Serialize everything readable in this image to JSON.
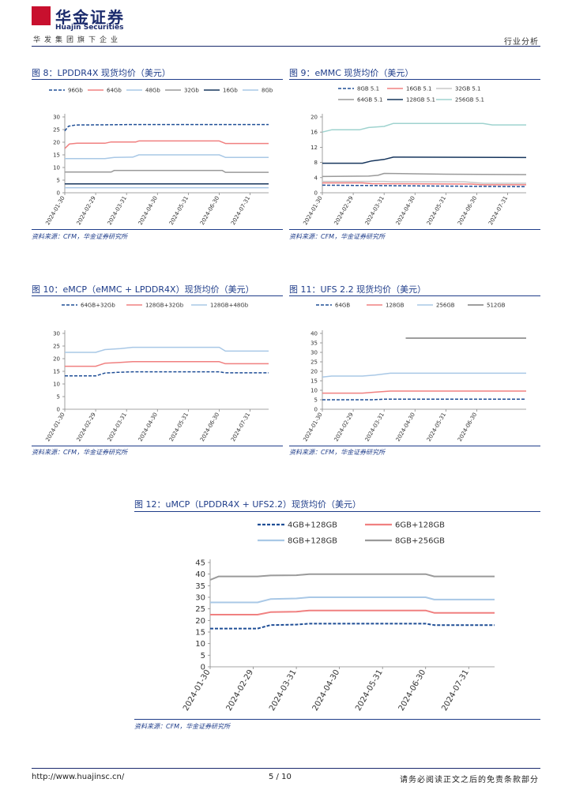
{
  "header": {
    "logo_cn": "华金证券",
    "logo_en": "Huajin Securities",
    "logo_sub": "华发集团旗下企业",
    "section": "行业分析"
  },
  "footer": {
    "url": "http://www.huajinsc.cn/",
    "page": "5 / 10",
    "disclaimer": "请务必阅读正文之后的免责条款部分"
  },
  "colors": {
    "dark_blue": "#1f4e96",
    "red": "#f08080",
    "light_blue": "#a9c8e6",
    "gray": "#9a9a9a",
    "dark_gray": "#7f7f7f",
    "navy": "#17365d",
    "teal": "#9fd3cf"
  },
  "chart_data": [
    {
      "type": "line",
      "id": "fig8",
      "title": "图 8：LPDDR4X 现货均价（美元）",
      "source": "资料来源：CFM，华金证券研究所",
      "ylim": [
        0,
        30
      ],
      "yticks": [
        0,
        5,
        10,
        15,
        20,
        25,
        30
      ],
      "xticks": [
        "2024-01-30",
        "2024-02-29",
        "2024-03-31",
        "2024-04-30",
        "2024-05-31",
        "2024-06-30",
        "2024-07-31"
      ],
      "x_end": 6.6,
      "series": [
        {
          "name": "96Gb",
          "color": "#1f4e96",
          "dash": true,
          "points": [
            [
              0,
              24.5
            ],
            [
              0.12,
              26.3
            ],
            [
              0.35,
              26.8
            ],
            [
              1.5,
              26.9
            ],
            [
              2.2,
              27.0
            ],
            [
              6.6,
              27.0
            ]
          ]
        },
        {
          "name": "64Gb",
          "color": "#f08080",
          "dash": false,
          "points": [
            [
              0,
              17.5
            ],
            [
              0.15,
              19.3
            ],
            [
              0.4,
              19.6
            ],
            [
              1.3,
              19.6
            ],
            [
              1.5,
              20.1
            ],
            [
              2.3,
              20.1
            ],
            [
              2.4,
              20.5
            ],
            [
              5.0,
              20.5
            ],
            [
              5.2,
              19.5
            ],
            [
              6.6,
              19.5
            ]
          ]
        },
        {
          "name": "48Gb",
          "color": "#a9c8e6",
          "dash": false,
          "points": [
            [
              0,
              13.5
            ],
            [
              1.3,
              13.5
            ],
            [
              1.6,
              14.0
            ],
            [
              2.2,
              14.1
            ],
            [
              2.4,
              15.0
            ],
            [
              5.0,
              15.0
            ],
            [
              5.2,
              14.0
            ],
            [
              6.6,
              14.0
            ]
          ]
        },
        {
          "name": "32Gb",
          "color": "#9a9a9a",
          "dash": false,
          "points": [
            [
              0,
              8.2
            ],
            [
              1.5,
              8.2
            ],
            [
              1.6,
              8.8
            ],
            [
              5.1,
              8.8
            ],
            [
              5.2,
              8.1
            ],
            [
              6.6,
              8.1
            ]
          ]
        },
        {
          "name": "16Gb",
          "color": "#17365d",
          "dash": false,
          "points": [
            [
              0,
              3.5
            ],
            [
              6.6,
              3.5
            ]
          ]
        },
        {
          "name": "8Gb",
          "color": "#a9c8e6",
          "dash": false,
          "points": [
            [
              0,
              2.0
            ],
            [
              6.6,
              2.0
            ]
          ]
        }
      ]
    },
    {
      "type": "line",
      "id": "fig9",
      "title": "图 9：eMMC 现货均价（美元）",
      "source": "资料来源：CFM，华金证券研究所",
      "ylim": [
        0,
        20
      ],
      "yticks": [
        0,
        4,
        8,
        12,
        16,
        20
      ],
      "xticks": [
        "2024-01-30",
        "2024-02-29",
        "2024-03-31",
        "2024-04-30",
        "2024-05-31",
        "2024-06-30",
        "2024-07-31"
      ],
      "x_end": 6.6,
      "series": [
        {
          "name": "8GB 5.1",
          "color": "#1f4e96",
          "dash": true,
          "points": [
            [
              0,
              2.0
            ],
            [
              6.6,
              1.6
            ]
          ]
        },
        {
          "name": "16GB 5.1",
          "color": "#f08080",
          "dash": false,
          "points": [
            [
              0,
              2.6
            ],
            [
              1.3,
              2.6
            ],
            [
              1.6,
              2.4
            ],
            [
              4.8,
              2.3
            ],
            [
              5.2,
              2.1
            ],
            [
              6.6,
              2.1
            ]
          ]
        },
        {
          "name": "32GB 5.1",
          "color": "#c8c8c8",
          "dash": false,
          "points": [
            [
              0,
              3.0
            ],
            [
              2.0,
              3.0
            ],
            [
              2.3,
              2.9
            ],
            [
              4.6,
              2.9
            ],
            [
              5.2,
              2.5
            ],
            [
              6.6,
              2.5
            ]
          ]
        },
        {
          "name": "64GB 5.1",
          "color": "#9a9a9a",
          "dash": false,
          "points": [
            [
              0,
              4.3
            ],
            [
              1.5,
              4.4
            ],
            [
              1.8,
              4.6
            ],
            [
              2.0,
              5.1
            ],
            [
              3.0,
              5.0
            ],
            [
              4.0,
              4.9
            ],
            [
              6.6,
              4.8
            ]
          ]
        },
        {
          "name": "128GB 5.1",
          "color": "#17365d",
          "dash": false,
          "points": [
            [
              0,
              7.8
            ],
            [
              1.3,
              7.8
            ],
            [
              1.6,
              8.4
            ],
            [
              2.0,
              8.8
            ],
            [
              2.3,
              9.4
            ],
            [
              6.6,
              9.3
            ]
          ]
        },
        {
          "name": "256GB 5.1",
          "color": "#9fd3cf",
          "dash": false,
          "points": [
            [
              0,
              16.0
            ],
            [
              0.3,
              16.6
            ],
            [
              1.2,
              16.6
            ],
            [
              1.5,
              17.2
            ],
            [
              2.0,
              17.5
            ],
            [
              2.3,
              18.3
            ],
            [
              5.2,
              18.3
            ],
            [
              5.5,
              17.9
            ],
            [
              6.6,
              17.9
            ]
          ]
        }
      ]
    },
    {
      "type": "line",
      "id": "fig10",
      "title": "图 10：eMCP（eMMC + LPDDR4X）现货均价（美元）",
      "source": "资料来源：CFM，华金证券研究所",
      "ylim": [
        0,
        30
      ],
      "yticks": [
        0,
        5,
        10,
        15,
        20,
        25,
        30
      ],
      "xticks": [
        "2024-01-30",
        "2024-02-29",
        "2024-03-31",
        "2024-04-30",
        "2024-05-31",
        "2024-06-30",
        "2024-07-31"
      ],
      "x_end": 6.6,
      "series": [
        {
          "name": "64GB+32Gb",
          "color": "#1f4e96",
          "dash": true,
          "points": [
            [
              0,
              13.2
            ],
            [
              1.0,
              13.2
            ],
            [
              1.3,
              14.3
            ],
            [
              1.7,
              14.6
            ],
            [
              2.2,
              14.8
            ],
            [
              5.0,
              14.8
            ],
            [
              5.2,
              14.4
            ],
            [
              6.6,
              14.4
            ]
          ]
        },
        {
          "name": "128GB+32Gb",
          "color": "#f08080",
          "dash": false,
          "points": [
            [
              0,
              17.0
            ],
            [
              1.0,
              17.0
            ],
            [
              1.3,
              18.2
            ],
            [
              1.8,
              18.5
            ],
            [
              2.2,
              18.8
            ],
            [
              5.0,
              18.8
            ],
            [
              5.2,
              18.0
            ],
            [
              6.6,
              18.0
            ]
          ]
        },
        {
          "name": "128GB+48Gb",
          "color": "#a9c8e6",
          "dash": false,
          "points": [
            [
              0,
              22.5
            ],
            [
              1.0,
              22.5
            ],
            [
              1.3,
              23.6
            ],
            [
              1.8,
              24.0
            ],
            [
              2.2,
              24.5
            ],
            [
              5.0,
              24.5
            ],
            [
              5.2,
              23.0
            ],
            [
              6.6,
              23.0
            ]
          ]
        }
      ]
    },
    {
      "type": "line",
      "id": "fig11",
      "title": "图 11：UFS 2.2 现货均价（美元）",
      "source": "资料来源：CFM，华金证券研究所",
      "ylim": [
        0,
        40
      ],
      "yticks": [
        0,
        5,
        10,
        15,
        20,
        25,
        30,
        35,
        40
      ],
      "xticks": [
        "2024-01-30",
        "2024-02-29",
        "2024-03-31",
        "2024-04-30",
        "2024-05-31",
        "2024-06-30"
      ],
      "x_end": 6.6,
      "series": [
        {
          "name": "64GB",
          "color": "#1f4e96",
          "dash": true,
          "points": [
            [
              0,
              5.0
            ],
            [
              1.6,
              5.0
            ],
            [
              2.0,
              5.3
            ],
            [
              6.6,
              5.3
            ]
          ]
        },
        {
          "name": "128GB",
          "color": "#f08080",
          "dash": false,
          "points": [
            [
              0,
              8.5
            ],
            [
              1.3,
              8.5
            ],
            [
              1.7,
              9.0
            ],
            [
              2.2,
              9.6
            ],
            [
              6.6,
              9.6
            ]
          ]
        },
        {
          "name": "256GB",
          "color": "#a9c8e6",
          "dash": false,
          "points": [
            [
              0,
              17.0
            ],
            [
              0.3,
              17.5
            ],
            [
              1.3,
              17.5
            ],
            [
              1.7,
              18.0
            ],
            [
              2.2,
              19.0
            ],
            [
              6.6,
              19.0
            ]
          ]
        },
        {
          "name": "512GB",
          "color": "#7f7f7f",
          "dash": false,
          "points": [
            [
              2.7,
              37.5
            ],
            [
              6.6,
              37.5
            ]
          ]
        }
      ]
    },
    {
      "type": "line",
      "id": "fig12",
      "title": "图 12：uMCP（LPDDR4X + UFS2.2）现货均价（美元）",
      "source": "资料来源：CFM，华金证券研究所",
      "ylim": [
        0,
        45
      ],
      "yticks": [
        0,
        5,
        10,
        15,
        20,
        25,
        30,
        35,
        40,
        45
      ],
      "xticks": [
        "2024-01-30",
        "2024-02-29",
        "2024-03-31",
        "2024-04-30",
        "2024-05-31",
        "2024-06-30",
        "2024-07-31"
      ],
      "x_end": 6.6,
      "series": [
        {
          "name": "4GB+128GB",
          "color": "#1f4e96",
          "dash": true,
          "points": [
            [
              0,
              16.5
            ],
            [
              1.1,
              16.5
            ],
            [
              1.4,
              18.0
            ],
            [
              2.0,
              18.2
            ],
            [
              2.3,
              18.6
            ],
            [
              5.0,
              18.6
            ],
            [
              5.2,
              18.0
            ],
            [
              6.6,
              18.0
            ]
          ]
        },
        {
          "name": "6GB+128GB",
          "color": "#f08080",
          "dash": false,
          "points": [
            [
              0,
              22.5
            ],
            [
              1.1,
              22.5
            ],
            [
              1.4,
              23.6
            ],
            [
              2.0,
              23.8
            ],
            [
              2.3,
              24.3
            ],
            [
              5.0,
              24.3
            ],
            [
              5.2,
              23.3
            ],
            [
              6.6,
              23.3
            ]
          ]
        },
        {
          "name": "8GB+128GB",
          "color": "#a9c8e6",
          "dash": false,
          "points": [
            [
              0,
              27.8
            ],
            [
              1.1,
              27.8
            ],
            [
              1.4,
              29.2
            ],
            [
              2.0,
              29.5
            ],
            [
              2.3,
              30.0
            ],
            [
              5.0,
              30.0
            ],
            [
              5.2,
              29.0
            ],
            [
              6.6,
              29.0
            ]
          ]
        },
        {
          "name": "8GB+256GB",
          "color": "#9a9a9a",
          "dash": false,
          "points": [
            [
              0,
              37.5
            ],
            [
              0.2,
              39.0
            ],
            [
              1.1,
              39.0
            ],
            [
              1.4,
              39.4
            ],
            [
              2.0,
              39.5
            ],
            [
              2.3,
              40.0
            ],
            [
              5.0,
              40.0
            ],
            [
              5.2,
              39.0
            ],
            [
              6.6,
              39.0
            ]
          ]
        }
      ]
    }
  ]
}
